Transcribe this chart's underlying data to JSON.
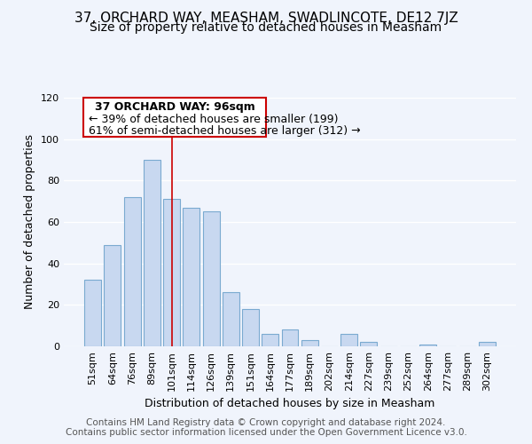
{
  "title": "37, ORCHARD WAY, MEASHAM, SWADLINCOTE, DE12 7JZ",
  "subtitle": "Size of property relative to detached houses in Measham",
  "xlabel": "Distribution of detached houses by size in Measham",
  "ylabel": "Number of detached properties",
  "bar_color": "#c8d8f0",
  "bar_edge_color": "#7aaad0",
  "categories": [
    "51sqm",
    "64sqm",
    "76sqm",
    "89sqm",
    "101sqm",
    "114sqm",
    "126sqm",
    "139sqm",
    "151sqm",
    "164sqm",
    "177sqm",
    "189sqm",
    "202sqm",
    "214sqm",
    "227sqm",
    "239sqm",
    "252sqm",
    "264sqm",
    "277sqm",
    "289sqm",
    "302sqm"
  ],
  "values": [
    32,
    49,
    72,
    90,
    71,
    67,
    65,
    26,
    18,
    6,
    8,
    3,
    0,
    6,
    2,
    0,
    0,
    1,
    0,
    0,
    2
  ],
  "ylim": [
    0,
    120
  ],
  "yticks": [
    0,
    20,
    40,
    60,
    80,
    100,
    120
  ],
  "annotation_text_line1": "37 ORCHARD WAY: 96sqm",
  "annotation_text_line2": "← 39% of detached houses are smaller (199)",
  "annotation_text_line3": "61% of semi-detached houses are larger (312) →",
  "property_bar_index": 4,
  "footer_line1": "Contains HM Land Registry data © Crown copyright and database right 2024.",
  "footer_line2": "Contains public sector information licensed under the Open Government Licence v3.0.",
  "bg_color": "#f0f4fc",
  "plot_bg_color": "#f0f4fc",
  "annotation_box_color": "#ffffff",
  "annotation_border_color": "#cc0000",
  "property_line_color": "#cc0000",
  "grid_color": "#ffffff",
  "title_fontsize": 11,
  "subtitle_fontsize": 10,
  "ylabel_fontsize": 9,
  "xlabel_fontsize": 9,
  "tick_fontsize": 8,
  "annotation_fontsize": 9,
  "footer_fontsize": 7.5
}
